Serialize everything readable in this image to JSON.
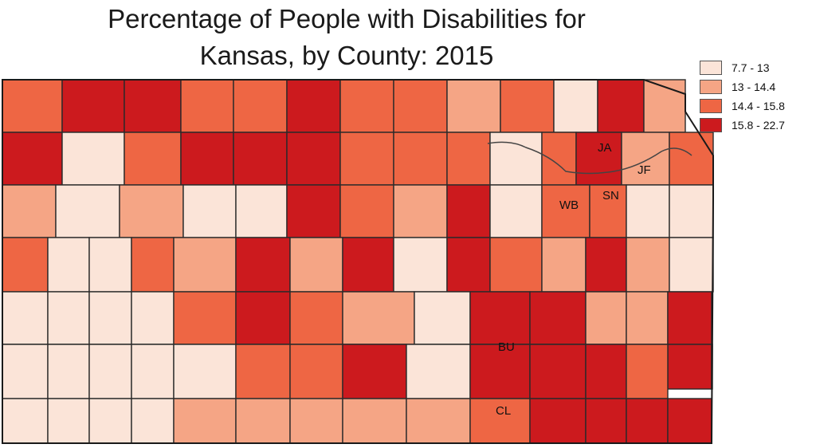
{
  "title_line1": "Percentage of People with Disabilities for",
  "title_line2": "Kansas, by County:  2015",
  "legend": [
    {
      "label": "7.7 - 13",
      "color": "#fbe4d8"
    },
    {
      "label": "13 - 14.4",
      "color": "#f5a585"
    },
    {
      "label": "14.4 - 15.8",
      "color": "#ee6644"
    },
    {
      "label": "15.8 - 22.7",
      "color": "#cc1a1e"
    }
  ],
  "county_labels": [
    "JA",
    "JF",
    "WB",
    "SN",
    "BU",
    "CL"
  ],
  "counties": [
    {
      "cls": 2
    },
    {
      "cls": 3
    },
    {
      "cls": 3
    },
    {
      "cls": 2
    },
    {
      "cls": 2
    },
    {
      "cls": 3
    },
    {
      "cls": 2
    },
    {
      "cls": 2
    },
    {
      "cls": 1
    },
    {
      "cls": 2
    },
    {
      "cls": 0
    },
    {
      "cls": 3
    },
    {
      "cls": 1
    },
    {
      "cls": 3
    },
    {
      "cls": 0
    },
    {
      "cls": 2
    },
    {
      "cls": 3
    },
    {
      "cls": 3
    },
    {
      "cls": 3
    },
    {
      "cls": 2
    },
    {
      "cls": 2
    },
    {
      "cls": 2
    },
    {
      "cls": 0
    },
    {
      "cls": 2
    },
    {
      "cls": 3
    },
    {
      "cls": 1
    },
    {
      "cls": 2
    },
    {
      "cls": 1
    },
    {
      "cls": 0
    },
    {
      "cls": 1
    },
    {
      "cls": 0
    },
    {
      "cls": 0
    },
    {
      "cls": 3
    },
    {
      "cls": 2
    },
    {
      "cls": 1
    },
    {
      "cls": 3
    },
    {
      "cls": 0
    },
    {
      "cls": 2
    },
    {
      "cls": 2
    },
    {
      "cls": 0
    },
    {
      "cls": 0
    },
    {
      "cls": 2
    },
    {
      "cls": 0
    },
    {
      "cls": 0
    },
    {
      "cls": 2
    },
    {
      "cls": 1
    },
    {
      "cls": 3
    },
    {
      "cls": 1
    },
    {
      "cls": 3
    },
    {
      "cls": 0
    },
    {
      "cls": 3
    },
    {
      "cls": 2
    },
    {
      "cls": 1
    },
    {
      "cls": 3
    },
    {
      "cls": 1
    },
    {
      "cls": 0
    },
    {
      "cls": 0
    },
    {
      "cls": 0
    },
    {
      "cls": 0
    },
    {
      "cls": 0
    },
    {
      "cls": 2
    },
    {
      "cls": 3
    },
    {
      "cls": 2
    },
    {
      "cls": 1
    },
    {
      "cls": 0
    },
    {
      "cls": 3
    },
    {
      "cls": 3
    },
    {
      "cls": 1
    },
    {
      "cls": 1
    },
    {
      "cls": 3
    },
    {
      "cls": 0
    },
    {
      "cls": 0
    },
    {
      "cls": 0
    },
    {
      "cls": 0
    },
    {
      "cls": 0
    },
    {
      "cls": 2
    },
    {
      "cls": 2
    },
    {
      "cls": 1
    },
    {
      "cls": 1
    },
    {
      "cls": 0
    },
    {
      "cls": 0
    },
    {
      "cls": 3
    },
    {
      "cls": 3
    },
    {
      "cls": 3
    },
    {
      "cls": 3
    },
    {
      "cls": 0
    },
    {
      "cls": 0
    },
    {
      "cls": 0
    },
    {
      "cls": 0
    },
    {
      "cls": 0
    },
    {
      "cls": 2
    },
    {
      "cls": 2
    },
    {
      "cls": 3
    },
    {
      "cls": 0
    },
    {
      "cls": 3
    },
    {
      "cls": 3
    },
    {
      "cls": 3
    },
    {
      "cls": 2
    },
    {
      "cls": 0
    },
    {
      "cls": 0
    },
    {
      "cls": 0
    },
    {
      "cls": 0
    },
    {
      "cls": 1
    },
    {
      "cls": 1
    },
    {
      "cls": 1
    },
    {
      "cls": 1
    },
    {
      "cls": 1
    },
    {
      "cls": 2
    },
    {
      "cls": 3
    },
    {
      "cls": 3
    },
    {
      "cls": 3
    },
    {
      "cls": 3
    }
  ]
}
